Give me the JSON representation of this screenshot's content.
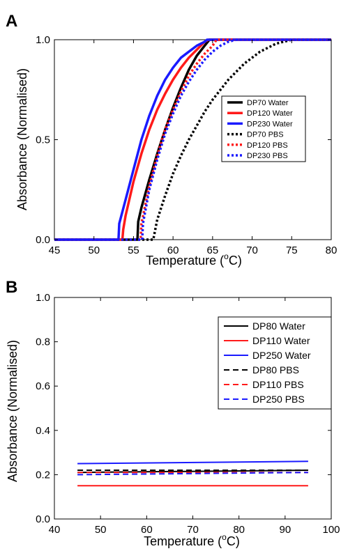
{
  "colors": {
    "black": "#000000",
    "red": "#ff1a1a",
    "blue": "#1a1aff"
  },
  "chart_data": [
    {
      "panel": "A",
      "type": "line",
      "xlabel": "Temperature (",
      "xlabel_sup": "o",
      "xlabel_end": "C)",
      "ylabel": "Absorbance (Normalised)",
      "xlim": [
        45,
        80
      ],
      "ylim": [
        0,
        1
      ],
      "xticks": [
        "45",
        "50",
        "55",
        "60",
        "65",
        "70",
        "75",
        "80"
      ],
      "yticks": [
        "0.0",
        "0.5",
        "1.0"
      ],
      "legend_position": "right",
      "series": [
        {
          "name": "DP70 Water",
          "color": "black",
          "style": "solid",
          "x": [
            45,
            55.5,
            55.6,
            56,
            57,
            58,
            59,
            60,
            61,
            62,
            63,
            64,
            64.6,
            80
          ],
          "y": [
            0,
            0,
            0.09,
            0.16,
            0.3,
            0.43,
            0.55,
            0.66,
            0.76,
            0.85,
            0.92,
            0.97,
            1,
            1
          ]
        },
        {
          "name": "DP120 Water",
          "color": "red",
          "style": "solid",
          "x": [
            45,
            53.6,
            53.7,
            54,
            55,
            56,
            57,
            58,
            59,
            60,
            61,
            62,
            63,
            64,
            64.5,
            80
          ],
          "y": [
            0,
            0,
            0.05,
            0.12,
            0.29,
            0.43,
            0.55,
            0.65,
            0.73,
            0.8,
            0.86,
            0.91,
            0.95,
            0.99,
            1,
            1
          ]
        },
        {
          "name": "DP230 Water",
          "color": "blue",
          "style": "solid",
          "x": [
            45,
            53.1,
            53.2,
            54,
            55,
            56,
            57,
            58,
            59,
            60,
            61,
            62,
            63,
            64,
            64.3,
            80
          ],
          "y": [
            0,
            0,
            0.08,
            0.2,
            0.35,
            0.5,
            0.62,
            0.72,
            0.8,
            0.86,
            0.91,
            0.94,
            0.97,
            0.99,
            1,
            1
          ]
        },
        {
          "name": "DP70 PBS",
          "color": "black",
          "style": "dotted",
          "x": [
            45,
            57.5,
            58,
            59,
            60,
            61,
            62,
            63,
            64,
            65,
            66,
            67,
            68,
            69,
            70,
            71,
            72,
            73,
            74,
            75,
            80
          ],
          "y": [
            0,
            0,
            0.1,
            0.22,
            0.33,
            0.42,
            0.5,
            0.57,
            0.64,
            0.7,
            0.75,
            0.8,
            0.84,
            0.88,
            0.91,
            0.94,
            0.96,
            0.98,
            0.99,
            1,
            1
          ]
        },
        {
          "name": "DP120 PBS",
          "color": "red",
          "style": "dotted",
          "x": [
            45,
            55.9,
            56,
            57,
            58,
            59,
            60,
            61,
            62,
            63,
            64,
            65,
            65.5,
            80
          ],
          "y": [
            0,
            0,
            0.08,
            0.27,
            0.42,
            0.55,
            0.65,
            0.74,
            0.82,
            0.88,
            0.93,
            0.97,
            1,
            1
          ]
        },
        {
          "name": "DP230 PBS",
          "color": "blue",
          "style": "dotted",
          "x": [
            45,
            56.1,
            56.2,
            57,
            58,
            59,
            60,
            61,
            62,
            63,
            64,
            65,
            66,
            67,
            68,
            80
          ],
          "y": [
            0,
            0,
            0.08,
            0.25,
            0.4,
            0.53,
            0.63,
            0.72,
            0.79,
            0.85,
            0.9,
            0.94,
            0.97,
            0.99,
            1,
            1
          ]
        }
      ]
    },
    {
      "panel": "B",
      "type": "line",
      "xlabel": "Temperature (",
      "xlabel_sup": "o",
      "xlabel_end": "C)",
      "ylabel": "Absorbance (Normalised)",
      "xlim": [
        40,
        100
      ],
      "ylim": [
        0,
        1
      ],
      "xticks": [
        "40",
        "50",
        "60",
        "70",
        "80",
        "90",
        "100"
      ],
      "yticks": [
        "0.0",
        "0.2",
        "0.4",
        "0.6",
        "0.8",
        "1.0"
      ],
      "legend_position": "top-right",
      "series": [
        {
          "name": "DP80 Water",
          "color": "black",
          "style": "solid",
          "x": [
            45,
            95
          ],
          "y": [
            0.21,
            0.22
          ]
        },
        {
          "name": "DP110 Water",
          "color": "red",
          "style": "solid",
          "x": [
            45,
            95
          ],
          "y": [
            0.15,
            0.15
          ]
        },
        {
          "name": "DP250 Water",
          "color": "blue",
          "style": "solid",
          "x": [
            45,
            95
          ],
          "y": [
            0.25,
            0.26
          ]
        },
        {
          "name": "DP80 PBS",
          "color": "black",
          "style": "dashed",
          "x": [
            45,
            95
          ],
          "y": [
            0.22,
            0.22
          ]
        },
        {
          "name": "DP110 PBS",
          "color": "red",
          "style": "dashed",
          "x": [
            45,
            95
          ],
          "y": [
            0.21,
            0.21
          ]
        },
        {
          "name": "DP250 PBS",
          "color": "blue",
          "style": "dashed",
          "x": [
            45,
            95
          ],
          "y": [
            0.2,
            0.21
          ]
        }
      ]
    }
  ]
}
